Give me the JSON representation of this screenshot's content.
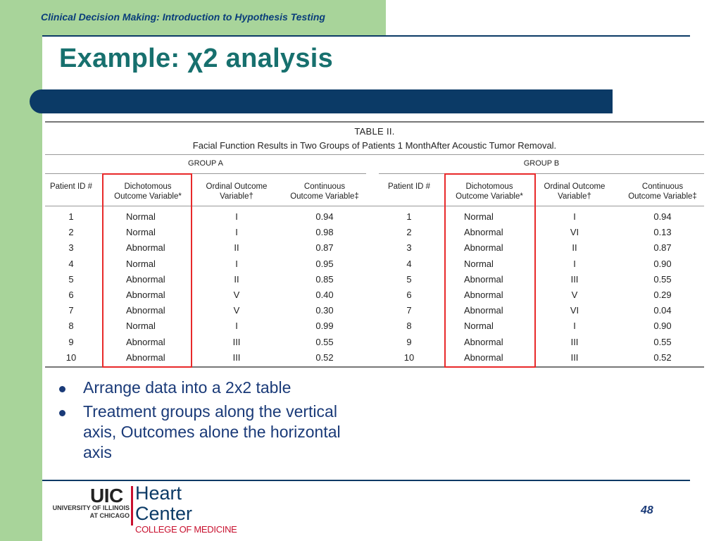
{
  "header": {
    "course_title": "Clinical Decision Making: Introduction to Hypothesis Testing"
  },
  "slide": {
    "title": "Example: χ2 analysis",
    "page_number": "48"
  },
  "table": {
    "caption_line1": "TABLE II.",
    "caption_line2": "Facial Function Results in Two Groups of Patients 1 MonthAfter Acoustic Tumor Removal.",
    "group_a_label": "GROUP A",
    "group_b_label": "GROUP B",
    "columns": {
      "patient_id": "Patient ID #",
      "dichotomous": "Dichotomous\nOutcome Variable*",
      "ordinal": "Ordinal Outcome\nVariable†",
      "continuous": "Continuous\nOutcome Variable‡"
    },
    "group_a": [
      {
        "id": "1",
        "dich": "Normal",
        "ord": "I",
        "cont": "0.94"
      },
      {
        "id": "2",
        "dich": "Normal",
        "ord": "I",
        "cont": "0.98"
      },
      {
        "id": "3",
        "dich": "Abnormal",
        "ord": "II",
        "cont": "0.87"
      },
      {
        "id": "4",
        "dich": "Normal",
        "ord": "I",
        "cont": "0.95"
      },
      {
        "id": "5",
        "dich": "Abnormal",
        "ord": "II",
        "cont": "0.85"
      },
      {
        "id": "6",
        "dich": "Abnormal",
        "ord": "V",
        "cont": "0.40"
      },
      {
        "id": "7",
        "dich": "Abnormal",
        "ord": "V",
        "cont": "0.30"
      },
      {
        "id": "8",
        "dich": "Normal",
        "ord": "I",
        "cont": "0.99"
      },
      {
        "id": "9",
        "dich": "Abnormal",
        "ord": "III",
        "cont": "0.55"
      },
      {
        "id": "10",
        "dich": "Abnormal",
        "ord": "III",
        "cont": "0.52"
      }
    ],
    "group_b": [
      {
        "id": "1",
        "dich": "Normal",
        "ord": "I",
        "cont": "0.94"
      },
      {
        "id": "2",
        "dich": "Abnormal",
        "ord": "VI",
        "cont": "0.13"
      },
      {
        "id": "3",
        "dich": "Abnormal",
        "ord": "II",
        "cont": "0.87"
      },
      {
        "id": "4",
        "dich": "Normal",
        "ord": "I",
        "cont": "0.90"
      },
      {
        "id": "5",
        "dich": "Abnormal",
        "ord": "III",
        "cont": "0.55"
      },
      {
        "id": "6",
        "dich": "Abnormal",
        "ord": "V",
        "cont": "0.29"
      },
      {
        "id": "7",
        "dich": "Abnormal",
        "ord": "VI",
        "cont": "0.04"
      },
      {
        "id": "8",
        "dich": "Normal",
        "ord": "I",
        "cont": "0.90"
      },
      {
        "id": "9",
        "dich": "Abnormal",
        "ord": "III",
        "cont": "0.55"
      },
      {
        "id": "10",
        "dich": "Abnormal",
        "ord": "III",
        "cont": "0.52"
      }
    ]
  },
  "bullets": [
    "Arrange data into a 2x2 table",
    "Treatment groups along the vertical axis, Outcomes alone the horizontal axis"
  ],
  "logo": {
    "uic": "UIC",
    "heart_center": "Heart\nCenter",
    "university": "UNIVERSITY OF ILLINOIS\nAT CHICAGO",
    "college": "COLLEGE OF MEDICINE"
  },
  "colors": {
    "green_band": "#a8d49a",
    "navy": "#0b3a66",
    "title_teal": "#17706e",
    "highlight_red": "#e8292a"
  }
}
